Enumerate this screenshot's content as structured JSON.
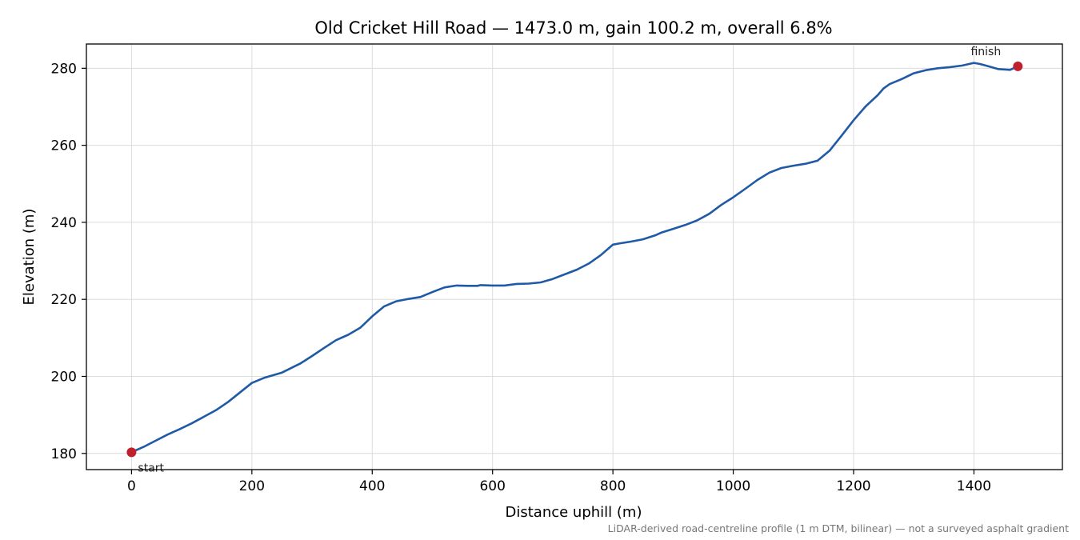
{
  "chart_data": {
    "type": "line",
    "title": "Old Cricket Hill Road — 1473.0 m, gain 100.2 m, overall 6.8%",
    "xlabel": "Distance uphill (m)",
    "ylabel": "Elevation (m)",
    "xlim": [
      -75,
      1547
    ],
    "ylim": [
      175.8,
      286.3
    ],
    "xticks": [
      0,
      200,
      400,
      600,
      800,
      1000,
      1200,
      1400
    ],
    "yticks": [
      180,
      200,
      220,
      240,
      260,
      280
    ],
    "grid": true,
    "line_color": "#1f5aa6",
    "marker_color": "#c0202e",
    "series": [
      {
        "x": [
          0,
          20,
          40,
          60,
          80,
          100,
          120,
          140,
          160,
          180,
          200,
          220,
          250,
          280,
          300,
          320,
          340,
          360,
          380,
          400,
          420,
          440,
          460,
          480,
          500,
          520,
          540,
          560,
          575,
          580,
          600,
          620,
          640,
          660,
          680,
          700,
          720,
          740,
          760,
          780,
          800,
          810,
          830,
          850,
          870,
          880,
          900,
          920,
          940,
          960,
          980,
          1000,
          1020,
          1040,
          1060,
          1080,
          1100,
          1120,
          1140,
          1160,
          1180,
          1200,
          1220,
          1240,
          1250,
          1260,
          1280,
          1300,
          1320,
          1340,
          1360,
          1380,
          1400,
          1410,
          1420,
          1440,
          1460,
          1473
        ],
        "y": [
          180.3,
          181.7,
          183.3,
          184.9,
          186.3,
          187.8,
          189.5,
          191.2,
          193.3,
          195.8,
          198.3,
          199.6,
          201.0,
          203.3,
          205.3,
          207.4,
          209.4,
          210.8,
          212.6,
          215.6,
          218.2,
          219.5,
          220.1,
          220.6,
          221.9,
          223.1,
          223.6,
          223.5,
          223.5,
          223.7,
          223.6,
          223.6,
          224.0,
          224.1,
          224.4,
          225.3,
          226.5,
          227.7,
          229.3,
          231.5,
          234.2,
          234.5,
          235.0,
          235.6,
          236.6,
          237.3,
          238.3,
          239.3,
          240.5,
          242.2,
          244.5,
          246.5,
          248.7,
          251.0,
          252.9,
          254.1,
          254.7,
          255.2,
          256.0,
          258.6,
          262.5,
          266.5,
          270.1,
          273.0,
          274.8,
          275.9,
          277.2,
          278.7,
          279.5,
          280.0,
          280.3,
          280.7,
          281.4,
          281.1,
          280.7,
          279.8,
          279.6,
          280.5
        ]
      }
    ],
    "annotations": [
      {
        "text": "start",
        "x": 0,
        "y": 180.3
      },
      {
        "text": "finish",
        "x": 1473,
        "y": 280.5
      }
    ],
    "footnote": "LiDAR-derived road-centreline profile (1 m DTM, bilinear) — not a surveyed asphalt gradient"
  }
}
